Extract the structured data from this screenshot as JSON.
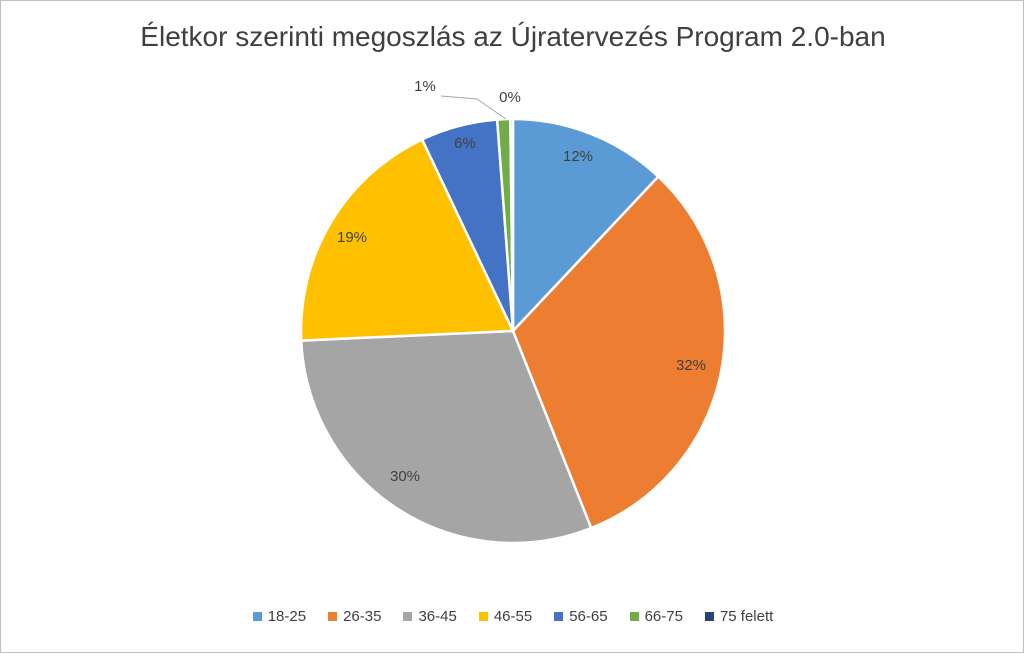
{
  "chart_data": {
    "type": "pie",
    "title": "Életkor szerinti megoszlás az Újratervezés Program 2.0-ban",
    "categories": [
      "18-25",
      "26-35",
      "36-45",
      "46-55",
      "56-65",
      "66-75",
      "75 felett"
    ],
    "values": [
      12,
      32,
      30,
      19,
      6,
      1,
      0
    ],
    "labels": [
      "12%",
      "32%",
      "30%",
      "19%",
      "6%",
      "1%",
      "0%"
    ],
    "colors": [
      "#5B9BD5",
      "#ED7D31",
      "#A5A5A5",
      "#FFC000",
      "#4472C4",
      "#70AD47",
      "#264478"
    ],
    "legend_position": "bottom"
  }
}
